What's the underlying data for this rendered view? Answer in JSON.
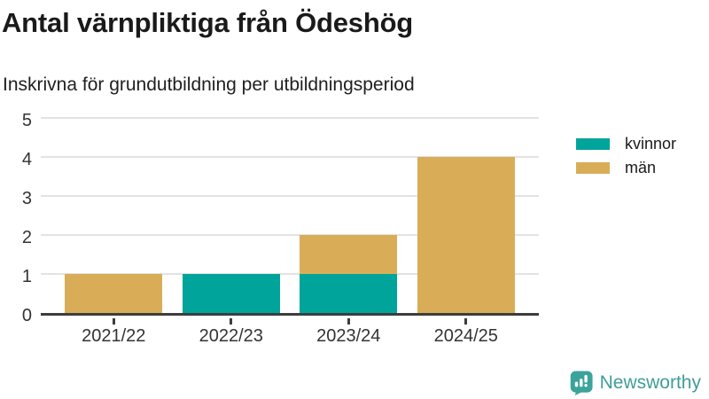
{
  "title": "Antal värnpliktiga från Ödeshög",
  "subtitle": "Inskrivna för grundutbildning per utbildningsperiod",
  "chart_data": {
    "type": "bar",
    "stacked": true,
    "title": "Antal värnpliktiga från Ödeshög",
    "subtitle": "Inskrivna för grundutbildning per utbildningsperiod",
    "categories": [
      "2021/22",
      "2022/23",
      "2023/24",
      "2024/25"
    ],
    "series": [
      {
        "name": "kvinnor",
        "color": "#00a49b",
        "values": [
          0,
          1,
          1,
          0
        ]
      },
      {
        "name": "män",
        "color": "#d9ad57",
        "values": [
          1,
          0,
          1,
          4
        ]
      }
    ],
    "ylim": [
      0,
      5
    ],
    "yticks": [
      0,
      1,
      2,
      3,
      4,
      5
    ],
    "xlabel": "",
    "ylabel": "",
    "grid": "horizontal",
    "legend_position": "right"
  },
  "branding": {
    "logo_text": "Newsworthy",
    "logo_color": "#3ba39c"
  }
}
